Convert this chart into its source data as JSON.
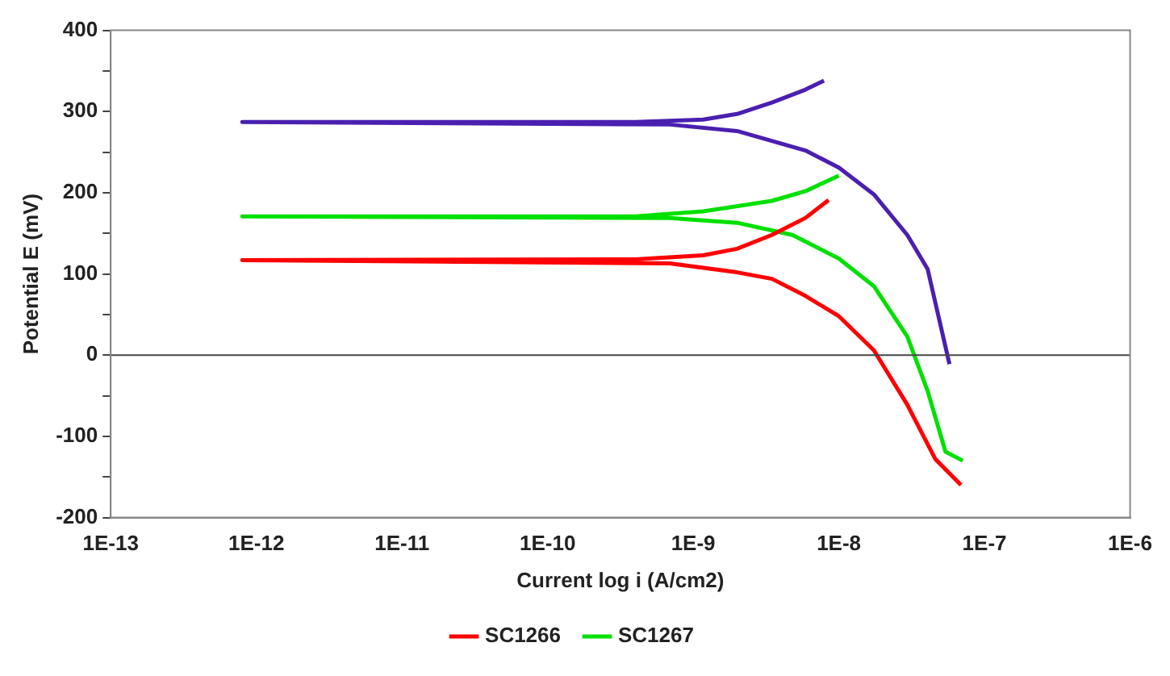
{
  "chart_data": {
    "type": "line",
    "xlabel": "Current log i (A/cm2)",
    "ylabel": "Potential E (mV)",
    "log": "x",
    "grid": false,
    "legend": "bottom",
    "marker": "none",
    "line_style": "solid",
    "xlim": [
      1e-13,
      1e-06
    ],
    "xticks": [
      {
        "value": 1e-13,
        "label": "1E-13"
      },
      {
        "value": 1e-12,
        "label": "1E-12"
      },
      {
        "value": 1e-11,
        "label": "1E-11"
      },
      {
        "value": 1e-10,
        "label": "1E-10"
      },
      {
        "value": 1e-09,
        "label": "1E-9"
      },
      {
        "value": 1e-08,
        "label": "1E-8"
      },
      {
        "value": 1e-07,
        "label": "1E-7"
      },
      {
        "value": 1e-06,
        "label": "1E-6"
      }
    ],
    "ylim": [
      -200,
      400
    ],
    "yticks": [
      -200,
      {
        "value": -150,
        "label": null
      },
      -100,
      {
        "value": -50,
        "label": null
      },
      0,
      {
        "value": 50,
        "label": null
      },
      100,
      {
        "value": 150,
        "label": null
      },
      200,
      {
        "value": 250,
        "label": null
      },
      300,
      {
        "value": 350,
        "label": null
      },
      400
    ],
    "ref_lines": [
      {
        "axis": "y",
        "value": 0,
        "color": "#444444"
      }
    ],
    "series": [
      {
        "color": "#4b1fb0",
        "x": [
          5.75e-08,
          4.07e-08,
          2.95e-08,
          1.74e-08,
          1e-08,
          5.9e-09,
          2e-09,
          6.9e-10,
          8e-13,
          4e-10,
          1.17e-09,
          2e-09,
          3.47e-09,
          5.9e-09,
          7.9e-09
        ],
        "values": [
          -11,
          106,
          148,
          198,
          231,
          252,
          276,
          284,
          287,
          287,
          290,
          297,
          311,
          327,
          338
        ]
      },
      {
        "name": "SC1266",
        "color": "#ff0000",
        "x": [
          6.9e-08,
          4.6e-08,
          2.95e-08,
          1.74e-08,
          1e-08,
          5.9e-09,
          3.47e-09,
          2e-09,
          6.9e-10,
          8e-13,
          4e-10,
          1.17e-09,
          2e-09,
          3.47e-09,
          5.9e-09,
          8.5e-09
        ],
        "values": [
          -160,
          -128,
          -61,
          6,
          48,
          73,
          94,
          102,
          113,
          117,
          118,
          123,
          131,
          148,
          169,
          191
        ]
      },
      {
        "name": "SC1267",
        "color": "#00e000",
        "x": [
          7.1e-08,
          5.4e-08,
          4.07e-08,
          2.95e-08,
          1.74e-08,
          1e-08,
          4.8e-09,
          2e-09,
          6.9e-10,
          8e-13,
          4e-10,
          1.17e-09,
          3.47e-09,
          5.9e-09,
          1e-08
        ],
        "values": [
          -130,
          -119,
          -44,
          23,
          85,
          119,
          148,
          163,
          169,
          171,
          171,
          177,
          190,
          202,
          221
        ]
      }
    ]
  }
}
